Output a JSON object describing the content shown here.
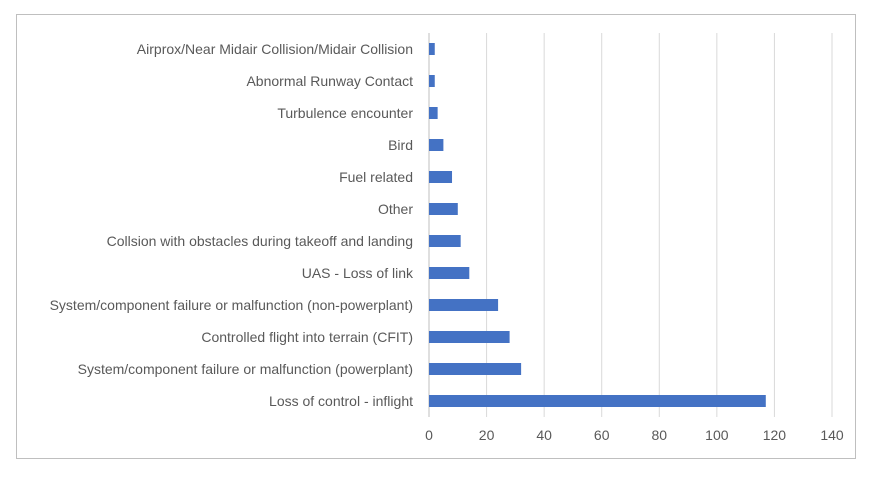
{
  "chart_data": {
    "type": "bar",
    "orientation": "horizontal",
    "title": "",
    "xlabel": "",
    "ylabel": "",
    "categories": [
      "Airprox/Near Midair Collision/Midair Collision",
      "Abnormal Runway Contact",
      "Turbulence encounter",
      "Bird",
      "Fuel related",
      "Other",
      "Collsion with obstacles during takeoff and landing",
      "UAS - Loss of link",
      "System/component failure or malfunction (non-powerplant)",
      "Controlled flight into terrain (CFIT)",
      "System/component failure or malfunction (powerplant)",
      "Loss of control - inflight"
    ],
    "values": [
      2,
      2,
      3,
      5,
      8,
      10,
      11,
      14,
      24,
      28,
      32,
      117
    ],
    "xlim": [
      0,
      140
    ],
    "xticks": [
      0,
      20,
      40,
      60,
      80,
      100,
      120,
      140
    ],
    "grid": "vertical",
    "legend": "none",
    "bar_color": "#4472c4",
    "grid_color": "#d9d9d9"
  }
}
